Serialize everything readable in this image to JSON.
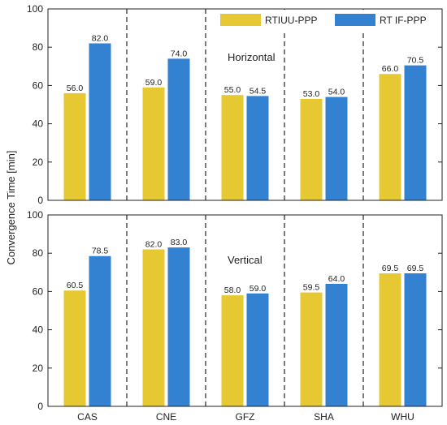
{
  "chart_data": {
    "type": "bar",
    "ylabel": "Convergence Time  [min]",
    "categories": [
      "CAS",
      "CNE",
      "GFZ",
      "SHA",
      "WHU"
    ],
    "legend": {
      "placement": "top-right",
      "entries": [
        "RTIUU-PPP",
        "RT IF-PPP"
      ]
    },
    "colors": {
      "RTIUU-PPP": "#e5c832",
      "RT IF-PPP": "#3381d1"
    },
    "panels": [
      {
        "annotation": "Horizontal",
        "ylim": [
          0,
          100
        ],
        "yticks": [
          "0",
          "20",
          "40",
          "60",
          "80",
          "100"
        ],
        "series": [
          {
            "name": "RTIUU-PPP",
            "values": [
              56.0,
              59.0,
              55.0,
              53.0,
              66.0
            ],
            "labels": [
              "56.0",
              "59.0",
              "55.0",
              "53.0",
              "66.0"
            ]
          },
          {
            "name": "RT IF-PPP",
            "values": [
              82.0,
              74.0,
              54.5,
              54.0,
              70.5
            ],
            "labels": [
              "82.0",
              "74.0",
              "54.5",
              "54.0",
              "70.5"
            ]
          }
        ]
      },
      {
        "annotation": "Vertical",
        "ylim": [
          0,
          100
        ],
        "yticks": [
          "0",
          "20",
          "40",
          "60",
          "80",
          "100"
        ],
        "series": [
          {
            "name": "RTIUU-PPP",
            "values": [
              60.5,
              82.0,
              58.0,
              59.5,
              69.5
            ],
            "labels": [
              "60.5",
              "82.0",
              "58.0",
              "59.5",
              "69.5"
            ]
          },
          {
            "name": "RT IF-PPP",
            "values": [
              78.5,
              83.0,
              59.0,
              64.0,
              69.5
            ],
            "labels": [
              "78.5",
              "83.0",
              "59.0",
              "64.0",
              "69.5"
            ]
          }
        ]
      }
    ]
  }
}
